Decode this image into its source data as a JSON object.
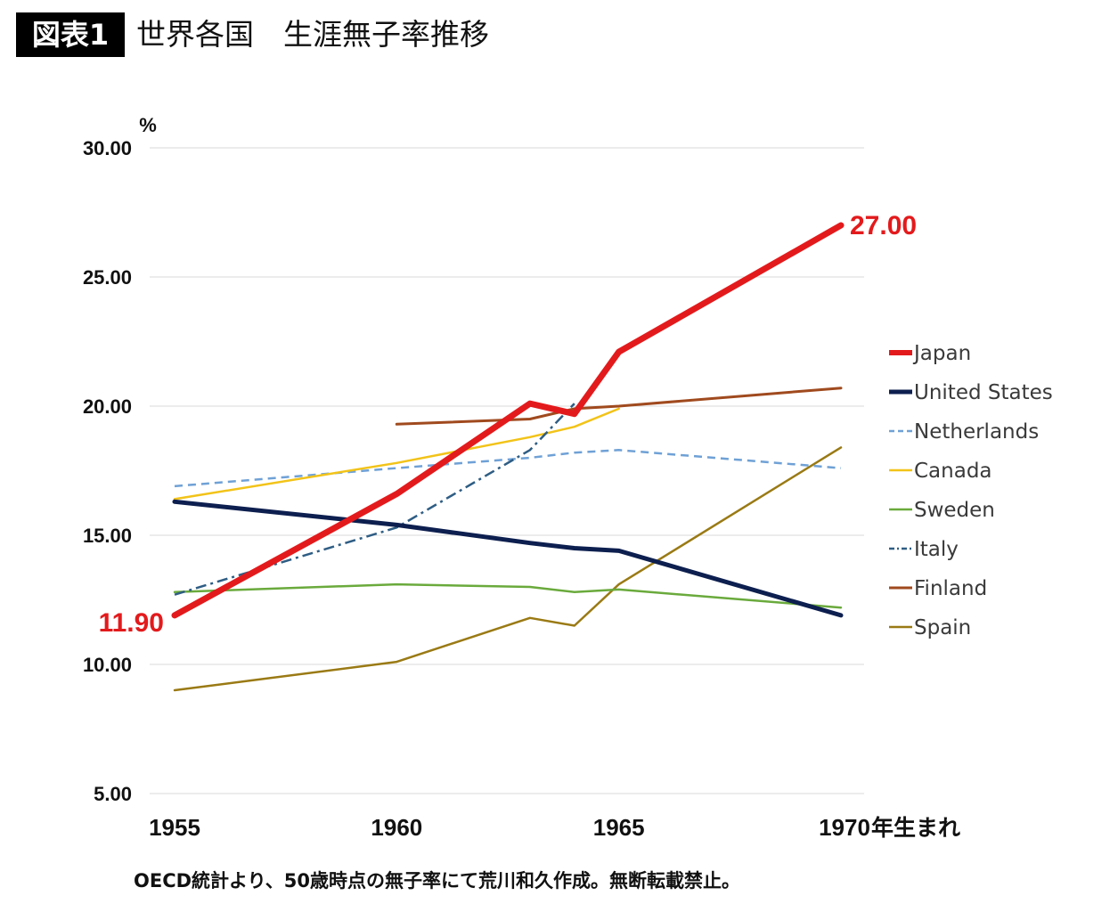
{
  "header": {
    "badge": "図表1",
    "title": "世界各国　生涯無子率推移"
  },
  "footer": {
    "source": "OECD統計より、50歳時点の無子率にて荒川和久作成。無断転載禁止。"
  },
  "chart_data": {
    "type": "line",
    "title": "世界各国　生涯無子率推移",
    "ylabel": "%",
    "xlabel": "",
    "xlim": [
      1955,
      1970
    ],
    "ylim": [
      5,
      30
    ],
    "x_ticks": [
      "1955",
      "1960",
      "1965",
      "1970"
    ],
    "x_unit_label": "年生まれ",
    "y_ticks": [
      "5.00",
      "10.00",
      "15.00",
      "20.00",
      "25.00",
      "30.00"
    ],
    "grid": true,
    "legend_position": "right",
    "annotations": [
      {
        "text": "11.90",
        "series": "Japan",
        "x": 1955,
        "y": 11.9,
        "color": "#e31a1c"
      },
      {
        "text": "27.00",
        "series": "Japan",
        "x": 1970,
        "y": 27.0,
        "color": "#e31a1c"
      }
    ],
    "series": [
      {
        "name": "Japan",
        "color": "#e31a1c",
        "width": 7,
        "dash": "",
        "points": [
          [
            1955,
            11.9
          ],
          [
            1960,
            16.6
          ],
          [
            1963,
            20.1
          ],
          [
            1964,
            19.7
          ],
          [
            1965,
            22.1
          ],
          [
            1970,
            27.0
          ]
        ]
      },
      {
        "name": "United States",
        "color": "#0d1f4f",
        "width": 5,
        "dash": "",
        "points": [
          [
            1955,
            16.3
          ],
          [
            1960,
            15.4
          ],
          [
            1963,
            14.7
          ],
          [
            1964,
            14.5
          ],
          [
            1965,
            14.4
          ],
          [
            1970,
            11.9
          ]
        ]
      },
      {
        "name": "Netherlands",
        "color": "#6fa1d6",
        "width": 2.5,
        "dash": "9,6",
        "points": [
          [
            1955,
            16.9
          ],
          [
            1960,
            17.6
          ],
          [
            1963,
            18.0
          ],
          [
            1964,
            18.2
          ],
          [
            1965,
            18.3
          ],
          [
            1970,
            17.6
          ]
        ]
      },
      {
        "name": "Canada",
        "color": "#f2c318",
        "width": 2.5,
        "dash": "",
        "points": [
          [
            1955,
            16.4
          ],
          [
            1960,
            17.8
          ],
          [
            1963,
            18.8
          ],
          [
            1964,
            19.2
          ],
          [
            1965,
            19.9
          ]
        ]
      },
      {
        "name": "Sweden",
        "color": "#6aaa3c",
        "width": 2.5,
        "dash": "",
        "points": [
          [
            1955,
            12.8
          ],
          [
            1960,
            13.1
          ],
          [
            1963,
            13.0
          ],
          [
            1964,
            12.8
          ],
          [
            1965,
            12.9
          ],
          [
            1970,
            12.2
          ]
        ]
      },
      {
        "name": "Italy",
        "color": "#2e5d84",
        "width": 2.5,
        "dash": "12,5,3,5",
        "points": [
          [
            1955,
            12.7
          ],
          [
            1960,
            15.3
          ],
          [
            1963,
            18.3
          ],
          [
            1964,
            20.1
          ]
        ]
      },
      {
        "name": "Finland",
        "color": "#a04a1e",
        "width": 3,
        "dash": "",
        "points": [
          [
            1960,
            19.3
          ],
          [
            1963,
            19.5
          ],
          [
            1964,
            19.9
          ],
          [
            1965,
            20.0
          ],
          [
            1970,
            20.7
          ]
        ]
      },
      {
        "name": "Spain",
        "color": "#9a7a14",
        "width": 2.5,
        "dash": "",
        "points": [
          [
            1955,
            9.0
          ],
          [
            1960,
            10.1
          ],
          [
            1963,
            11.8
          ],
          [
            1964,
            11.5
          ],
          [
            1965,
            13.1
          ],
          [
            1970,
            18.4
          ]
        ]
      }
    ]
  }
}
